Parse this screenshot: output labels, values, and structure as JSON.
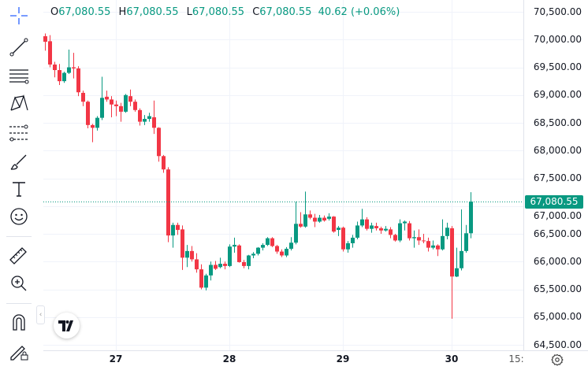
{
  "legend": {
    "o_label": "O",
    "o": "67,080.55",
    "h_label": "H",
    "h": "67,080.55",
    "l_label": "L",
    "l": "67,080.55",
    "c_label": "C",
    "c": "67,080.55",
    "change": "40.62 (+0.06%)"
  },
  "toolbar": {
    "tools": [
      "crosshair-icon",
      "trend-line-icon",
      "horizontal-lines-icon",
      "pattern-icon",
      "fib-icon",
      "brush-icon",
      "text-icon",
      "emoji-icon",
      "ruler-icon",
      "zoom-in-icon",
      "magnet-icon",
      "lock-drawing-icon"
    ]
  },
  "colors": {
    "up": "#089981",
    "down": "#f23645",
    "grid": "#f0f3fa",
    "accent": "#2962ff"
  },
  "last_price_tag": "67,080.55",
  "time_extra_label": "15:",
  "chart_data": {
    "type": "candlestick",
    "title": "",
    "ylim": [
      64500,
      70500
    ],
    "y_ticks": [
      "70,500.00",
      "70,000.00",
      "69,500.00",
      "69,000.00",
      "68,500.00",
      "68,000.00",
      "67,500.00",
      "67,000.00",
      "66,500.00",
      "66,000.00",
      "65,500.00",
      "65,000.00",
      "64,500.00"
    ],
    "y_tick_values": [
      70500,
      70000,
      69500,
      69000,
      68500,
      68000,
      67500,
      67000,
      66500,
      66000,
      65500,
      65000,
      64500
    ],
    "x_ticks": [
      "27",
      "28",
      "29",
      "30"
    ],
    "x_tick_candle_index": [
      15,
      39,
      63,
      86
    ],
    "last_price": 67080.55,
    "candles": [
      [
        70060,
        70110,
        69800,
        69960
      ],
      [
        69970,
        70080,
        69500,
        69550
      ],
      [
        69550,
        69600,
        69320,
        69450
      ],
      [
        69450,
        69560,
        69180,
        69250
      ],
      [
        69250,
        69420,
        69220,
        69400
      ],
      [
        69400,
        69820,
        69380,
        69500
      ],
      [
        69500,
        69760,
        69300,
        69480
      ],
      [
        69480,
        69520,
        68980,
        69050
      ],
      [
        69040,
        69080,
        68800,
        68880
      ],
      [
        68880,
        68900,
        68400,
        68460
      ],
      [
        68460,
        68480,
        68150,
        68410
      ],
      [
        68410,
        68620,
        68360,
        68590
      ],
      [
        68590,
        69330,
        68550,
        68950
      ],
      [
        68970,
        69080,
        68880,
        68920
      ],
      [
        68920,
        68980,
        68600,
        68830
      ],
      [
        68830,
        68900,
        68620,
        68800
      ],
      [
        68800,
        68860,
        68520,
        68700
      ],
      [
        68700,
        69020,
        68680,
        69000
      ],
      [
        68980,
        69100,
        68800,
        68880
      ],
      [
        68880,
        68920,
        68700,
        68730
      ],
      [
        68730,
        68760,
        68450,
        68520
      ],
      [
        68520,
        68640,
        68460,
        68570
      ],
      [
        68570,
        68680,
        68520,
        68620
      ],
      [
        68600,
        68900,
        68300,
        68410
      ],
      [
        68410,
        68420,
        67800,
        67900
      ],
      [
        67900,
        67920,
        67600,
        67660
      ],
      [
        67660,
        67700,
        66350,
        66470
      ],
      [
        66470,
        66700,
        66250,
        66660
      ],
      [
        66660,
        66700,
        66480,
        66570
      ],
      [
        66580,
        66650,
        65850,
        66070
      ],
      [
        66070,
        66300,
        65900,
        66190
      ],
      [
        66190,
        66280,
        66000,
        66040
      ],
      [
        66040,
        66150,
        65800,
        65860
      ],
      [
        65860,
        65950,
        65500,
        65530
      ],
      [
        65530,
        65780,
        65480,
        65750
      ],
      [
        65750,
        66000,
        65660,
        65940
      ],
      [
        65940,
        66010,
        65850,
        65870
      ],
      [
        65900,
        66070,
        65880,
        65960
      ],
      [
        65960,
        66000,
        65860,
        65920
      ],
      [
        65920,
        66310,
        65900,
        66270
      ],
      [
        66270,
        66430,
        66160,
        66300
      ],
      [
        66290,
        66310,
        65980,
        65990
      ],
      [
        65990,
        66030,
        65880,
        65920
      ],
      [
        65920,
        66120,
        65860,
        66110
      ],
      [
        66110,
        66170,
        66060,
        66140
      ],
      [
        66140,
        66260,
        66110,
        66250
      ],
      [
        66250,
        66330,
        66200,
        66300
      ],
      [
        66300,
        66440,
        66280,
        66420
      ],
      [
        66420,
        66440,
        66260,
        66280
      ],
      [
        66280,
        66300,
        66140,
        66180
      ],
      [
        66180,
        66220,
        66080,
        66110
      ],
      [
        66110,
        66260,
        66080,
        66230
      ],
      [
        66230,
        66440,
        66200,
        66340
      ],
      [
        66340,
        67080,
        66310,
        66680
      ],
      [
        66680,
        66890,
        66610,
        66630
      ],
      [
        66630,
        67260,
        66610,
        66850
      ],
      [
        66850,
        66920,
        66760,
        66790
      ],
      [
        66790,
        66860,
        66620,
        66720
      ],
      [
        66720,
        66840,
        66700,
        66790
      ],
      [
        66790,
        66830,
        66720,
        66740
      ],
      [
        66770,
        66870,
        66740,
        66810
      ],
      [
        66810,
        66820,
        66520,
        66540
      ],
      [
        66570,
        66640,
        66460,
        66610
      ],
      [
        66610,
        66630,
        66180,
        66220
      ],
      [
        66220,
        66370,
        66160,
        66330
      ],
      [
        66330,
        66480,
        66250,
        66430
      ],
      [
        66430,
        66720,
        66400,
        66650
      ],
      [
        66650,
        66950,
        66620,
        66760
      ],
      [
        66760,
        66800,
        66560,
        66590
      ],
      [
        66590,
        66700,
        66520,
        66650
      ],
      [
        66640,
        66700,
        66560,
        66600
      ],
      [
        66600,
        66630,
        66500,
        66560
      ],
      [
        66560,
        66640,
        66540,
        66590
      ],
      [
        66580,
        66620,
        66420,
        66480
      ],
      [
        66480,
        66500,
        66360,
        66380
      ],
      [
        66380,
        66760,
        66350,
        66690
      ],
      [
        66690,
        66740,
        66560,
        66720
      ],
      [
        66690,
        66730,
        66380,
        66420
      ],
      [
        66420,
        66560,
        66250,
        66440
      ],
      [
        66440,
        66580,
        66300,
        66380
      ],
      [
        66380,
        66500,
        66330,
        66370
      ],
      [
        66370,
        66430,
        66180,
        66250
      ],
      [
        66250,
        66380,
        66220,
        66290
      ],
      [
        66290,
        66310,
        66100,
        66220
      ],
      [
        66220,
        66760,
        66200,
        66460
      ],
      [
        66460,
        66700,
        66400,
        66610
      ],
      [
        66600,
        66640,
        64970,
        65730
      ],
      [
        65730,
        66250,
        65720,
        65880
      ],
      [
        65880,
        66940,
        65840,
        66190
      ],
      [
        66190,
        66660,
        66160,
        66510
      ],
      [
        66510,
        67250,
        66420,
        67080
      ]
    ]
  }
}
